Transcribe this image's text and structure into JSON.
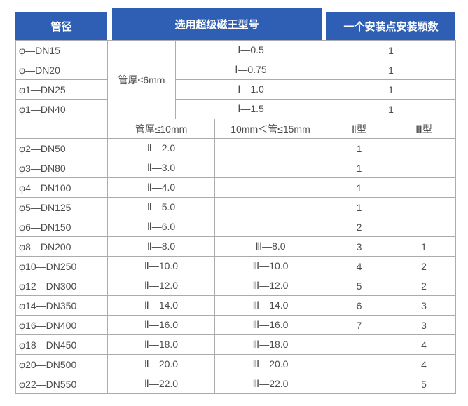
{
  "header": {
    "pipe": "管径",
    "model": "选用超级磁王型号",
    "count": "一个安装点安装颗数"
  },
  "upper": {
    "thickness": "管厚≤6mm",
    "rows": [
      {
        "pipe": "φ—DN15",
        "model": "Ⅰ—0.5",
        "count": "1"
      },
      {
        "pipe": "φ—DN20",
        "model": "Ⅰ—0.75",
        "count": "1"
      },
      {
        "pipe": "φ1—DN25",
        "model": "Ⅰ—1.0",
        "count": "1"
      },
      {
        "pipe": "φ1—DN40",
        "model": "Ⅰ—1.5",
        "count": "1"
      }
    ]
  },
  "subheader": {
    "blank": "",
    "thin": "管厚≤10mm",
    "mid": "10mm＜管≤15mm",
    "type2": "Ⅱ型",
    "type3": "Ⅲ型"
  },
  "lower": {
    "rows": [
      {
        "pipe": "φ2—DN50",
        "model2": "Ⅱ—2.0",
        "model3": "",
        "count2": "1",
        "count3": ""
      },
      {
        "pipe": "φ3—DN80",
        "model2": "Ⅱ—3.0",
        "model3": "",
        "count2": "1",
        "count3": ""
      },
      {
        "pipe": "φ4—DN100",
        "model2": "Ⅱ—4.0",
        "model3": "",
        "count2": "1",
        "count3": ""
      },
      {
        "pipe": "φ5—DN125",
        "model2": "Ⅱ—5.0",
        "model3": "",
        "count2": "1",
        "count3": ""
      },
      {
        "pipe": "φ6—DN150",
        "model2": "Ⅱ—6.0",
        "model3": "",
        "count2": "2",
        "count3": ""
      },
      {
        "pipe": "φ8—DN200",
        "model2": "Ⅱ—8.0",
        "model3": "Ⅲ—8.0",
        "count2": "3",
        "count3": "1"
      },
      {
        "pipe": "φ10—DN250",
        "model2": "Ⅱ—10.0",
        "model3": "Ⅲ—10.0",
        "count2": "4",
        "count3": "2"
      },
      {
        "pipe": "φ12—DN300",
        "model2": "Ⅱ—12.0",
        "model3": "Ⅲ—12.0",
        "count2": "5",
        "count3": "2"
      },
      {
        "pipe": "φ14—DN350",
        "model2": "Ⅱ—14.0",
        "model3": "Ⅲ—14.0",
        "count2": "6",
        "count3": "3"
      },
      {
        "pipe": "φ16—DN400",
        "model2": "Ⅱ—16.0",
        "model3": "Ⅲ—16.0",
        "count2": "7",
        "count3": "3"
      },
      {
        "pipe": "φ18—DN450",
        "model2": "Ⅱ—18.0",
        "model3": "Ⅲ—18.0",
        "count2": "",
        "count3": "4"
      },
      {
        "pipe": "φ20—DN500",
        "model2": "Ⅱ—20.0",
        "model3": "Ⅲ—20.0",
        "count2": "",
        "count3": "4"
      },
      {
        "pipe": "φ22—DN550",
        "model2": "Ⅱ—22.0",
        "model3": "Ⅲ—22.0",
        "count2": "",
        "count3": "5"
      }
    ]
  },
  "colors": {
    "header_bg": "#2e5fb4",
    "border": "#ababab",
    "text": "#4d4d4d",
    "header_text": "#ffffff"
  }
}
